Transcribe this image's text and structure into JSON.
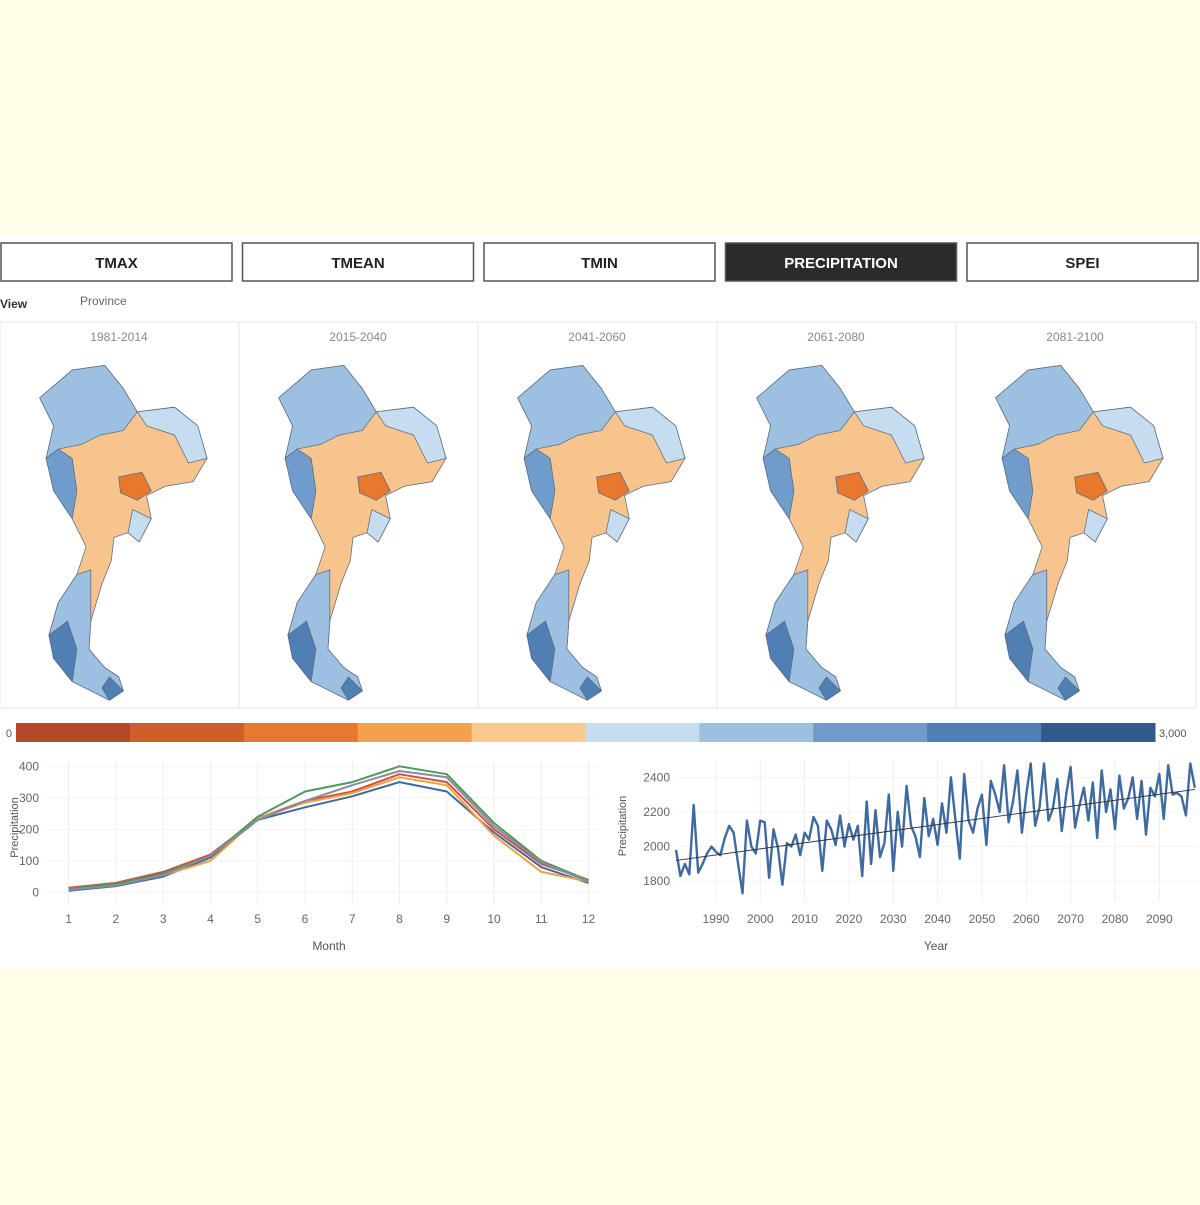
{
  "tabs": [
    {
      "label": "TMAX",
      "active": false
    },
    {
      "label": "TMEAN",
      "active": false
    },
    {
      "label": "TMIN",
      "active": false
    },
    {
      "label": "PRECIPITATION",
      "active": true
    },
    {
      "label": "SPEI",
      "active": false
    }
  ],
  "view": {
    "label": "View",
    "value": "Province"
  },
  "periods": [
    "1981-2014",
    "2015-2040",
    "2041-2060",
    "2061-2080",
    "2081-2100"
  ],
  "legend": {
    "min": {
      "value": 0,
      "label": "0"
    },
    "max": {
      "value": 3000,
      "label": "3,000"
    },
    "colors": [
      "#b5482a",
      "#cf5f2a",
      "#e8782e",
      "#f5a04d",
      "#f9c98f",
      "#c6dcef",
      "#9dc0e0",
      "#6f9ccb",
      "#4f7fb3",
      "#2f5a8c"
    ]
  },
  "chart_data": [
    {
      "type": "line",
      "x_label": "Month",
      "y_label": "Precipitation",
      "x": [
        1,
        2,
        3,
        4,
        5,
        6,
        7,
        8,
        9,
        10,
        11,
        12
      ],
      "xlim": [
        0.5,
        12.2
      ],
      "xticks": [
        1,
        2,
        3,
        4,
        5,
        6,
        7,
        8,
        9,
        10,
        11,
        12
      ],
      "ylim": [
        -40,
        420
      ],
      "yticks": [
        0,
        100,
        200,
        300,
        400
      ],
      "grid": true,
      "series": [
        {
          "color": "#3f6aa0",
          "values": [
            5,
            20,
            50,
            110,
            230,
            270,
            305,
            350,
            320,
            190,
            80,
            30
          ]
        },
        {
          "color": "#d4503a",
          "values": [
            15,
            30,
            65,
            120,
            235,
            290,
            320,
            375,
            350,
            200,
            90,
            40
          ]
        },
        {
          "color": "#f0a040",
          "values": [
            10,
            25,
            55,
            100,
            235,
            285,
            315,
            365,
            340,
            180,
            65,
            35
          ]
        },
        {
          "color": "#4d9a5a",
          "values": [
            12,
            28,
            60,
            115,
            240,
            320,
            350,
            400,
            375,
            220,
            100,
            38
          ]
        },
        {
          "color": "#8a8aa0",
          "values": [
            8,
            22,
            55,
            115,
            230,
            290,
            340,
            385,
            365,
            210,
            95,
            35
          ]
        }
      ]
    },
    {
      "type": "line",
      "x_label": "Year",
      "y_label": "Precipitation",
      "x": [
        1981,
        1982,
        1983,
        1984,
        1985,
        1986,
        1987,
        1988,
        1989,
        1990,
        1991,
        1992,
        1993,
        1994,
        1995,
        1996,
        1997,
        1998,
        1999,
        2000,
        2001,
        2002,
        2003,
        2004,
        2005,
        2006,
        2007,
        2008,
        2009,
        2010,
        2011,
        2012,
        2013,
        2014,
        2015,
        2016,
        2017,
        2018,
        2019,
        2020,
        2021,
        2022,
        2023,
        2024,
        2025,
        2026,
        2027,
        2028,
        2029,
        2030,
        2031,
        2032,
        2033,
        2034,
        2035,
        2036,
        2037,
        2038,
        2039,
        2040,
        2041,
        2042,
        2043,
        2044,
        2045,
        2046,
        2047,
        2048,
        2049,
        2050,
        2051,
        2052,
        2053,
        2054,
        2055,
        2056,
        2057,
        2058,
        2059,
        2060,
        2061,
        2062,
        2063,
        2064,
        2065,
        2066,
        2067,
        2068,
        2069,
        2070,
        2071,
        2072,
        2073,
        2074,
        2075,
        2076,
        2077,
        2078,
        2079,
        2080,
        2081,
        2082,
        2083,
        2084,
        2085,
        2086,
        2087,
        2088,
        2089,
        2090,
        2091,
        2092,
        2093,
        2094,
        2095,
        2096,
        2097,
        2098
      ],
      "xlim": [
        1981,
        2098.5
      ],
      "xticks": [
        1990,
        2000,
        2010,
        2020,
        2030,
        2040,
        2050,
        2060,
        2070,
        2080,
        2090
      ],
      "ylim": [
        1680,
        2500
      ],
      "yticks": [
        1800,
        2000,
        2200,
        2400
      ],
      "grid": true,
      "series": [
        {
          "color": "#3f6aa0",
          "values": [
            1980,
            1830,
            1900,
            1840,
            2240,
            1850,
            1900,
            1960,
            2000,
            1970,
            1950,
            2050,
            2120,
            2080,
            1900,
            1730,
            2150,
            2000,
            1960,
            2150,
            2140,
            1820,
            2100,
            1990,
            1780,
            2020,
            2000,
            2070,
            1950,
            2080,
            2040,
            2170,
            2120,
            1860,
            2150,
            2100,
            2010,
            2180,
            2000,
            2130,
            2040,
            2120,
            1830,
            2260,
            1900,
            2210,
            1940,
            2020,
            2300,
            1860,
            2200,
            2000,
            2350,
            2120,
            2060,
            1940,
            2280,
            2060,
            2160,
            2010,
            2250,
            2080,
            2400,
            2160,
            1930,
            2420,
            2150,
            2080,
            2220,
            2300,
            2010,
            2380,
            2300,
            2200,
            2470,
            2140,
            2260,
            2440,
            2080,
            2300,
            2480,
            2120,
            2230,
            2480,
            2150,
            2220,
            2390,
            2090,
            2300,
            2460,
            2110,
            2240,
            2340,
            2150,
            2370,
            2050,
            2440,
            2200,
            2330,
            2100,
            2410,
            2220,
            2280,
            2400,
            2160,
            2380,
            2070,
            2340,
            2290,
            2420,
            2160,
            2470,
            2300,
            2310,
            2290,
            2180,
            2480,
            2340
          ]
        }
      ],
      "trend": {
        "x": [
          1981,
          2098
        ],
        "values": [
          1920,
          2330
        ],
        "color": "#333333"
      }
    }
  ]
}
